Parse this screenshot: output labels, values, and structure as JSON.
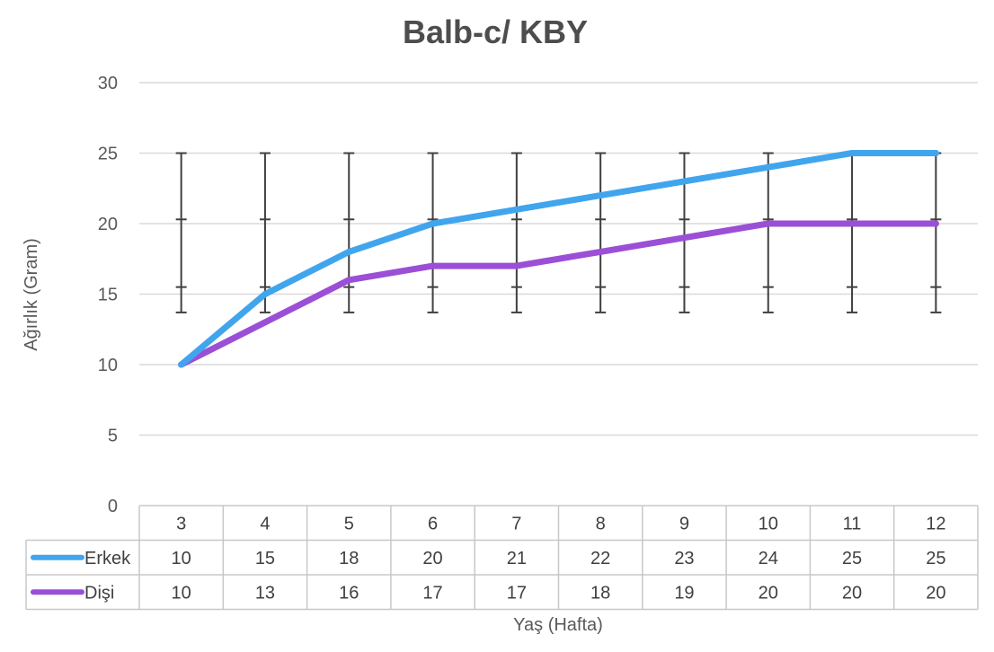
{
  "chart_data": {
    "type": "line",
    "title": "Balb-c/ KBY",
    "xlabel": "Yaş (Hafta)",
    "ylabel": "Ağırlık (Gram)",
    "categories": [
      "3",
      "4",
      "5",
      "6",
      "7",
      "8",
      "9",
      "10",
      "11",
      "12"
    ],
    "ylim": [
      0,
      30
    ],
    "yticks": [
      0,
      5,
      10,
      15,
      20,
      25,
      30
    ],
    "grid": true,
    "legend": "data-table",
    "series": [
      {
        "name": "Erkek",
        "color": "#41a5ee",
        "values": [
          10,
          15,
          18,
          20,
          21,
          22,
          23,
          24,
          25,
          25
        ]
      },
      {
        "name": "Dişi",
        "color": "#9b4fd6",
        "values": [
          10,
          13,
          16,
          17,
          17,
          18,
          19,
          20,
          20,
          20
        ]
      }
    ],
    "error_bars": {
      "low": 13.7,
      "high": 25,
      "inner_low": 15.5,
      "inner_high": 20.3,
      "color": "#404040"
    }
  }
}
